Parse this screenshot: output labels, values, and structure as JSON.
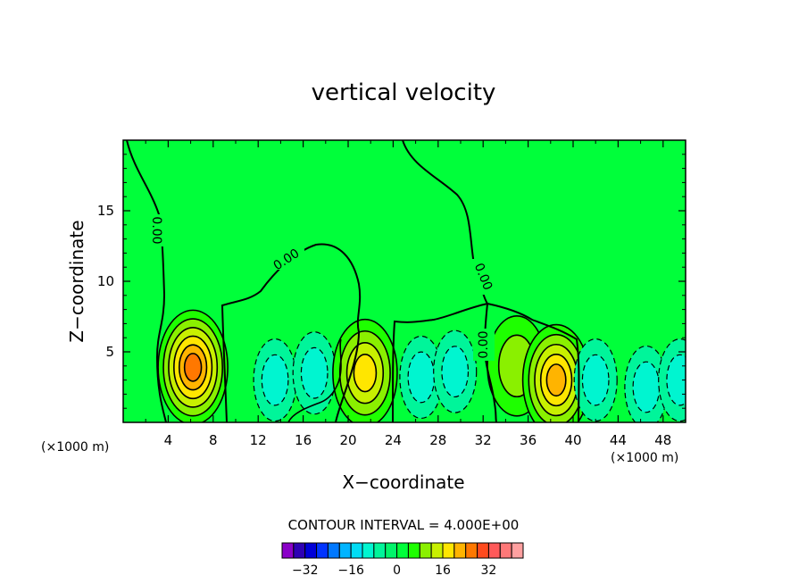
{
  "chart_data": {
    "type": "heatmap",
    "title": "vertical velocity",
    "xlabel": "X−coordinate",
    "ylabel": "Z−coordinate",
    "x_unit_left": "(×1000 m)",
    "x_unit_right": "(×1000 m)",
    "xlim": [
      0,
      50
    ],
    "ylim": [
      0,
      20
    ],
    "x_ticks": [
      4,
      8,
      12,
      16,
      20,
      24,
      28,
      32,
      36,
      40,
      44,
      48
    ],
    "y_ticks": [
      5,
      10,
      15
    ],
    "contour_interval_text": "CONTOUR INTERVAL = 4.000E+00",
    "contour_label": "0.00",
    "colorbar": {
      "levels": [
        -36,
        -32,
        -28,
        -24,
        -20,
        -16,
        -12,
        -8,
        -4,
        0,
        4,
        8,
        12,
        16,
        20,
        24,
        28,
        32,
        36
      ],
      "colors": [
        "#8a00c8",
        "#2e00b4",
        "#0000d8",
        "#0034ff",
        "#0078ff",
        "#00b4ff",
        "#00dcf5",
        "#00f5d0",
        "#00f59a",
        "#00f56a",
        "#00ff3a",
        "#1eff00",
        "#8af000",
        "#c8f000",
        "#ffe600",
        "#ffb400",
        "#ff7800",
        "#ff4a1e",
        "#ff5a5a",
        "#ff7878",
        "#ffa0a0"
      ],
      "tick_labels": [
        "−32",
        "−16",
        "0",
        "16",
        "32"
      ]
    },
    "features": [
      {
        "kind": "updraft",
        "x": 6.2,
        "z": 3.9,
        "peak": 24
      },
      {
        "kind": "downdraft",
        "x": 13.5,
        "z": 3.0,
        "peak": -8
      },
      {
        "kind": "downdraft",
        "x": 17.0,
        "z": 3.5,
        "peak": -8
      },
      {
        "kind": "updraft",
        "x": 21.5,
        "z": 3.5,
        "peak": 16
      },
      {
        "kind": "downdraft",
        "x": 26.5,
        "z": 3.2,
        "peak": -8
      },
      {
        "kind": "downdraft",
        "x": 29.5,
        "z": 3.6,
        "peak": -8
      },
      {
        "kind": "updraft",
        "x": 35.0,
        "z": 4.0,
        "peak": 8
      },
      {
        "kind": "updraft",
        "x": 38.5,
        "z": 3.0,
        "peak": 20
      },
      {
        "kind": "downdraft",
        "x": 42.0,
        "z": 3.0,
        "peak": -8
      },
      {
        "kind": "downdraft",
        "x": 46.5,
        "z": 2.5,
        "peak": -8
      },
      {
        "kind": "downdraft",
        "x": 49.5,
        "z": 3.0,
        "peak": -8
      }
    ]
  }
}
